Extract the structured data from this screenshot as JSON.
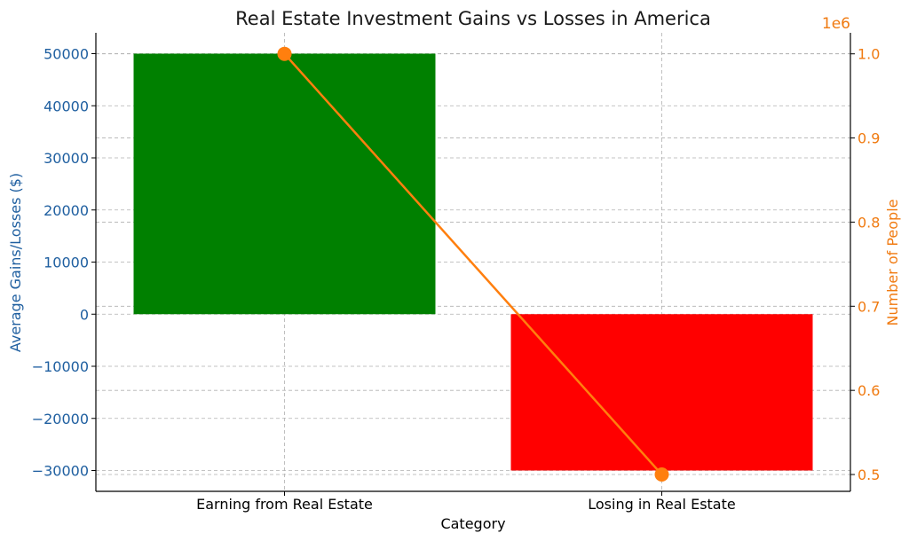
{
  "chart_data": {
    "type": "bar",
    "title": "Real Estate Investment Gains vs Losses in America",
    "xlabel": "Category",
    "ylabel": "Average Gains/Losses ($)",
    "y2label": "Number of People",
    "y2_offset_text": "1e6",
    "categories": [
      "Earning from Real Estate",
      "Losing in Real Estate"
    ],
    "bar_series": {
      "values": [
        50000,
        -30000
      ],
      "colors": [
        "#008000",
        "#ff0000"
      ]
    },
    "line_series": {
      "values": [
        1000000,
        500000
      ],
      "color": "#ff7f0e"
    },
    "ylim": [
      -34000,
      54000
    ],
    "y2lim": [
      0.48,
      1.025
    ],
    "yticks": [
      -30000,
      -20000,
      -10000,
      0,
      10000,
      20000,
      30000,
      40000,
      50000
    ],
    "y2ticks": [
      0.5,
      0.6,
      0.7,
      0.8,
      0.9,
      1.0
    ],
    "y2tick_labels": [
      "0.5",
      "0.6",
      "0.7",
      "0.8",
      "0.9",
      "1.0"
    ],
    "grid": true,
    "left_color": "#1f5fa0",
    "right_color": "#f07a10"
  }
}
